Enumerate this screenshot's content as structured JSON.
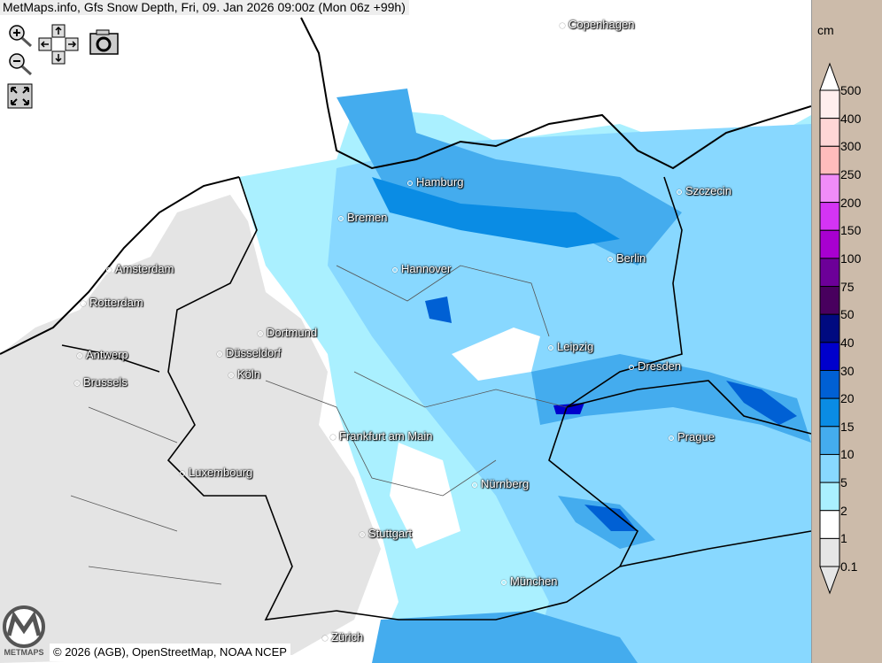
{
  "header": {
    "title": "MetMaps.info, Gfs Snow Depth, Fri, 09. Jan 2026 09:00z (Mon 06z +99h)"
  },
  "controls": {
    "zoom_in": "zoom-in-icon",
    "zoom_out": "zoom-out-icon",
    "pan": "pan-arrows-icon",
    "screenshot": "camera-icon",
    "fullscreen": "fullscreen-icon"
  },
  "cities": [
    "Copenhagen",
    "Hamburg",
    "Bremen",
    "Szczecin",
    "Amsterdam",
    "Hannover",
    "Berlin",
    "Rotterdam",
    "Dortmund",
    "Leipzig",
    "Antwerp",
    "Düsseldorf",
    "Dresden",
    "Brussels",
    "Köln",
    "Frankfurt am Main",
    "Prague",
    "Luxembourg",
    "Nürnberg",
    "Stuttgart",
    "München",
    "Zürich"
  ],
  "legend": {
    "unit": "cm",
    "labels": [
      "500",
      "400",
      "300",
      "250",
      "200",
      "150",
      "100",
      "75",
      "50",
      "40",
      "30",
      "20",
      "15",
      "10",
      "5",
      "2",
      "1",
      "0.1"
    ],
    "colors": [
      "#ffeeee",
      "#ffd6d6",
      "#ffbcbc",
      "#f08cf8",
      "#d434f4",
      "#a800d0",
      "#6c0098",
      "#48005e",
      "#000a80",
      "#0000cc",
      "#0060d4",
      "#0a8ce4",
      "#44acee",
      "#88d8ff",
      "#aaf0ff",
      "#ffffff",
      "#e6e6e6"
    ],
    "top_arrow_color": "#ffffff",
    "bottom_arrow_color": "#e6e6e6"
  },
  "footer": {
    "copyright": "© 2026 (AGB), OpenStreetMap, NOAA NCEP",
    "logo_text": "METMAPS"
  }
}
